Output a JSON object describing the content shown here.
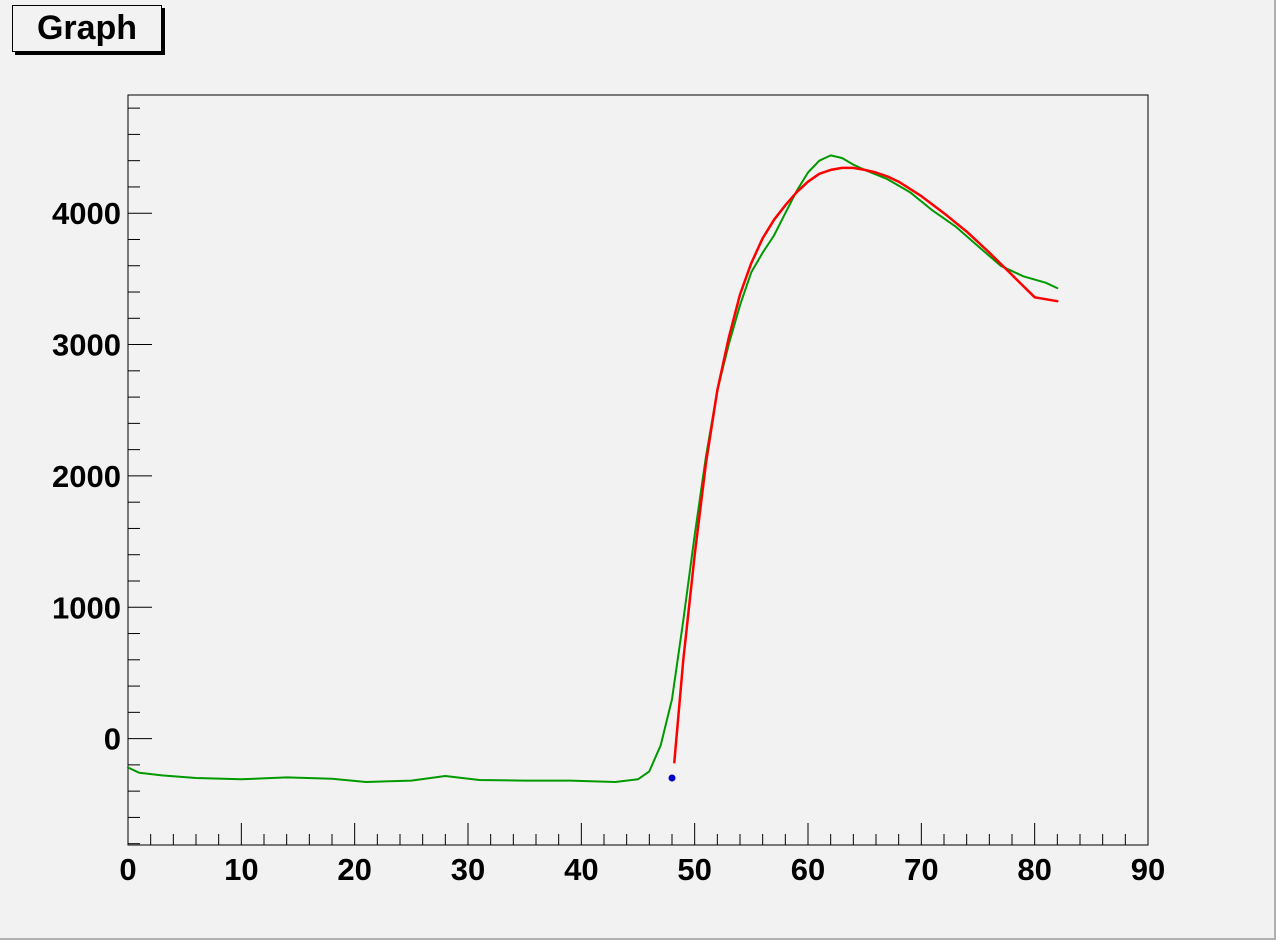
{
  "chart_data": {
    "type": "line",
    "title": "Graph",
    "xlabel": "",
    "ylabel": "",
    "xlim": [
      0,
      90
    ],
    "ylim": [
      -810,
      4900
    ],
    "x_ticks": [
      0,
      10,
      20,
      30,
      40,
      50,
      60,
      70,
      80,
      90
    ],
    "y_ticks": [
      0,
      1000,
      2000,
      3000,
      4000
    ],
    "grid": false,
    "series": [
      {
        "color": "#009900",
        "x": [
          0,
          1,
          3,
          6,
          10,
          14,
          18,
          21,
          25,
          28,
          31,
          35,
          39,
          43,
          45,
          46,
          47,
          48,
          49,
          50,
          51,
          52,
          53,
          54,
          55,
          56,
          57,
          58,
          59,
          60,
          61,
          62,
          63,
          64,
          65,
          67,
          69,
          71,
          73,
          75,
          77,
          79,
          81,
          82
        ],
        "y": [
          -220,
          -260,
          -280,
          -300,
          -310,
          -295,
          -305,
          -330,
          -320,
          -285,
          -315,
          -320,
          -320,
          -330,
          -310,
          -250,
          -50,
          300,
          900,
          1550,
          2150,
          2650,
          3000,
          3300,
          3550,
          3700,
          3830,
          4000,
          4170,
          4310,
          4400,
          4440,
          4420,
          4370,
          4330,
          4260,
          4160,
          4020,
          3900,
          3750,
          3600,
          3520,
          3470,
          3430
        ]
      },
      {
        "color": "#ff0000",
        "x": [
          48.2,
          49,
          50,
          51,
          52,
          53,
          54,
          55,
          56,
          57,
          58,
          59,
          60,
          61,
          62,
          63,
          64,
          65,
          66,
          67,
          68,
          70,
          72,
          74,
          76,
          78,
          80,
          82
        ],
        "y": [
          -180,
          600,
          1400,
          2100,
          2650,
          3050,
          3380,
          3620,
          3810,
          3950,
          4060,
          4160,
          4240,
          4300,
          4330,
          4345,
          4345,
          4330,
          4310,
          4280,
          4240,
          4130,
          4000,
          3860,
          3700,
          3530,
          3360,
          3330
        ]
      },
      {
        "color": "#0000cc",
        "x": [
          48
        ],
        "y": [
          -300
        ]
      }
    ]
  }
}
